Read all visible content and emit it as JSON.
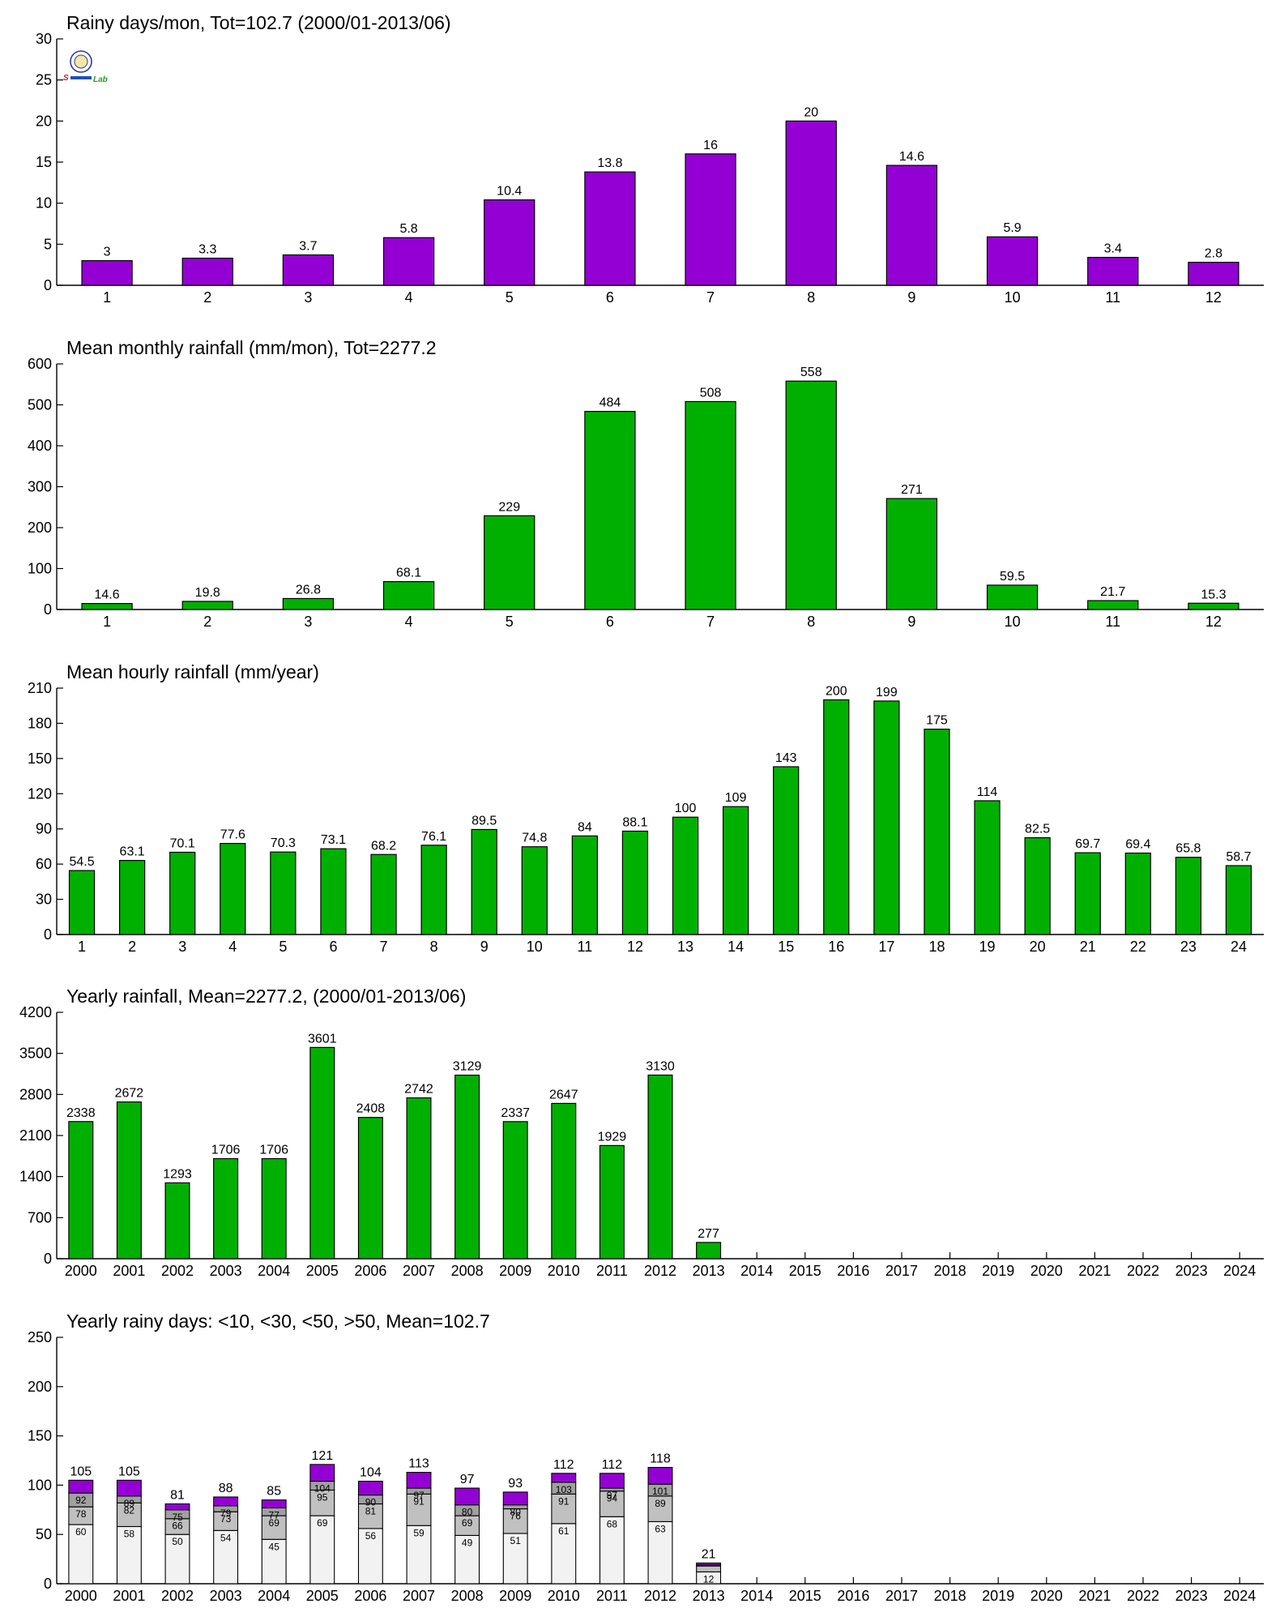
{
  "colors": {
    "purple": "#9400d3",
    "green": "#00b000",
    "white_seg": "#f2f2f2",
    "light_gray_seg": "#c0c0c0",
    "dark_gray_seg": "#a0a0a0"
  },
  "logo": {
    "text_a": "S",
    "text_b": "Lab",
    "icon": "university-seal-icon"
  },
  "chart_data": [
    {
      "type": "bar",
      "title": "Rainy days/mon, Tot=102.7 (2000/01-2013/06)",
      "color": "#9400d3",
      "categories": [
        "1",
        "2",
        "3",
        "4",
        "5",
        "6",
        "7",
        "8",
        "9",
        "10",
        "11",
        "12"
      ],
      "values": [
        3,
        3.3,
        3.7,
        5.8,
        10.4,
        13.8,
        16,
        20,
        14.6,
        5.9,
        3.4,
        2.8
      ],
      "labels": [
        "3",
        "3.3",
        "3.7",
        "5.8",
        "10.4",
        "13.8",
        "16",
        "20",
        "14.6",
        "5.9",
        "3.4",
        "2.8"
      ],
      "ylim": [
        0,
        30
      ],
      "yticks": [
        0,
        5,
        10,
        15,
        20,
        25,
        30
      ]
    },
    {
      "type": "bar",
      "title": "Mean monthly rainfall (mm/mon), Tot=2277.2",
      "color": "#00b000",
      "categories": [
        "1",
        "2",
        "3",
        "4",
        "5",
        "6",
        "7",
        "8",
        "9",
        "10",
        "11",
        "12"
      ],
      "values": [
        14.6,
        19.8,
        26.8,
        68.1,
        229,
        484,
        508,
        558,
        271,
        59.5,
        21.7,
        15.3
      ],
      "labels": [
        "14.6",
        "19.8",
        "26.8",
        "68.1",
        "229",
        "484",
        "508",
        "558",
        "271",
        "59.5",
        "21.7",
        "15.3"
      ],
      "ylim": [
        0,
        600
      ],
      "yticks": [
        0,
        100,
        200,
        300,
        400,
        500,
        600
      ]
    },
    {
      "type": "bar",
      "title": "Mean hourly rainfall (mm/year)",
      "color": "#00b000",
      "categories": [
        "1",
        "2",
        "3",
        "4",
        "5",
        "6",
        "7",
        "8",
        "9",
        "10",
        "11",
        "12",
        "13",
        "14",
        "15",
        "16",
        "17",
        "18",
        "19",
        "20",
        "21",
        "22",
        "23",
        "24"
      ],
      "values": [
        54.5,
        63.1,
        70.1,
        77.6,
        70.3,
        73.1,
        68.2,
        76.1,
        89.5,
        74.8,
        84,
        88.1,
        100,
        109,
        143,
        200,
        199,
        175,
        114,
        82.5,
        69.7,
        69.4,
        65.8,
        58.7
      ],
      "labels": [
        "54.5",
        "63.1",
        "70.1",
        "77.6",
        "70.3",
        "73.1",
        "68.2",
        "76.1",
        "89.5",
        "74.8",
        "84",
        "88.1",
        "100",
        "109",
        "143",
        "200",
        "199",
        "175",
        "114",
        "82.5",
        "69.7",
        "69.4",
        "65.8",
        "58.7"
      ],
      "ylim": [
        0,
        210
      ],
      "yticks": [
        0,
        30,
        60,
        90,
        120,
        150,
        180,
        210
      ]
    },
    {
      "type": "bar",
      "title": "Yearly rainfall, Mean=2277.2, (2000/01-2013/06)",
      "color": "#00b000",
      "categories": [
        "2000",
        "2001",
        "2002",
        "2003",
        "2004",
        "2005",
        "2006",
        "2007",
        "2008",
        "2009",
        "2010",
        "2011",
        "2012",
        "2013",
        "2014",
        "2015",
        "2016",
        "2017",
        "2018",
        "2019",
        "2020",
        "2021",
        "2022",
        "2023",
        "2024"
      ],
      "values": [
        2338,
        2672,
        1293,
        1706,
        1706,
        3601,
        2408,
        2742,
        3129,
        2337,
        2647,
        1929,
        3130,
        277,
        null,
        null,
        null,
        null,
        null,
        null,
        null,
        null,
        null,
        null,
        null
      ],
      "labels": [
        "2338",
        "2672",
        "1293",
        "1706",
        "1706",
        "3601",
        "2408",
        "2742",
        "3129",
        "2337",
        "2647",
        "1929",
        "3130",
        "277",
        "",
        "",
        "",
        "",
        "",
        "",
        "",
        "",
        "",
        "",
        ""
      ],
      "ylim": [
        0,
        4200
      ],
      "yticks": [
        0,
        700,
        1400,
        2100,
        2800,
        3500,
        4200
      ]
    },
    {
      "type": "bar",
      "stacked": true,
      "title": "Yearly rainy days: <10, <30, <50, >50, Mean=102.7",
      "categories": [
        "2000",
        "2001",
        "2002",
        "2003",
        "2004",
        "2005",
        "2006",
        "2007",
        "2008",
        "2009",
        "2010",
        "2011",
        "2012",
        "2013",
        "2014",
        "2015",
        "2016",
        "2017",
        "2018",
        "2019",
        "2020",
        "2021",
        "2022",
        "2023",
        "2024"
      ],
      "cumulative": {
        "lt10": [
          60,
          58,
          50,
          54,
          45,
          69,
          56,
          59,
          49,
          51,
          61,
          68,
          63,
          12,
          null,
          null,
          null,
          null,
          null,
          null,
          null,
          null,
          null,
          null,
          null
        ],
        "lt30": [
          78,
          82,
          66,
          73,
          69,
          95,
          81,
          91,
          69,
          76,
          91,
          94,
          89,
          18,
          null,
          null,
          null,
          null,
          null,
          null,
          null,
          null,
          null,
          null,
          null
        ],
        "lt50": [
          92,
          89,
          75,
          79,
          77,
          104,
          90,
          97,
          80,
          80,
          103,
          97,
          101,
          19,
          null,
          null,
          null,
          null,
          null,
          null,
          null,
          null,
          null,
          null,
          null
        ],
        "total": [
          105,
          105,
          81,
          88,
          85,
          121,
          104,
          113,
          97,
          93,
          112,
          112,
          118,
          21,
          null,
          null,
          null,
          null,
          null,
          null,
          null,
          null,
          null,
          null,
          null
        ]
      },
      "seg_labels": {
        "lt10": [
          "60",
          "58",
          "50",
          "54",
          "45",
          "69",
          "56",
          "59",
          "49",
          "51",
          "61",
          "68",
          "63",
          "12",
          "",
          "",
          "",
          "",
          "",
          "",
          "",
          "",
          "",
          "",
          ""
        ],
        "lt30": [
          "78",
          "82",
          "66",
          "73",
          "69",
          "95",
          "81",
          "91",
          "69",
          "76",
          "91",
          "94",
          "89",
          "",
          "",
          "",
          "",
          "",
          "",
          "",
          "",
          "",
          "",
          "",
          ""
        ],
        "lt50": [
          "92",
          "89",
          "75",
          "79",
          "77",
          "104",
          "90",
          "97",
          "80",
          "80",
          "103",
          "97",
          "101",
          "",
          "",
          "",
          "",
          "",
          "",
          "",
          "",
          "",
          "",
          "",
          ""
        ],
        "total": [
          "105",
          "105",
          "81",
          "88",
          "85",
          "121",
          "104",
          "113",
          "97",
          "93",
          "112",
          "112",
          "118",
          "21",
          "",
          "",
          "",
          "",
          "",
          "",
          "",
          "",
          "",
          "",
          ""
        ]
      },
      "ylim": [
        0,
        250
      ],
      "yticks": [
        0,
        50,
        100,
        150,
        200,
        250
      ]
    }
  ]
}
